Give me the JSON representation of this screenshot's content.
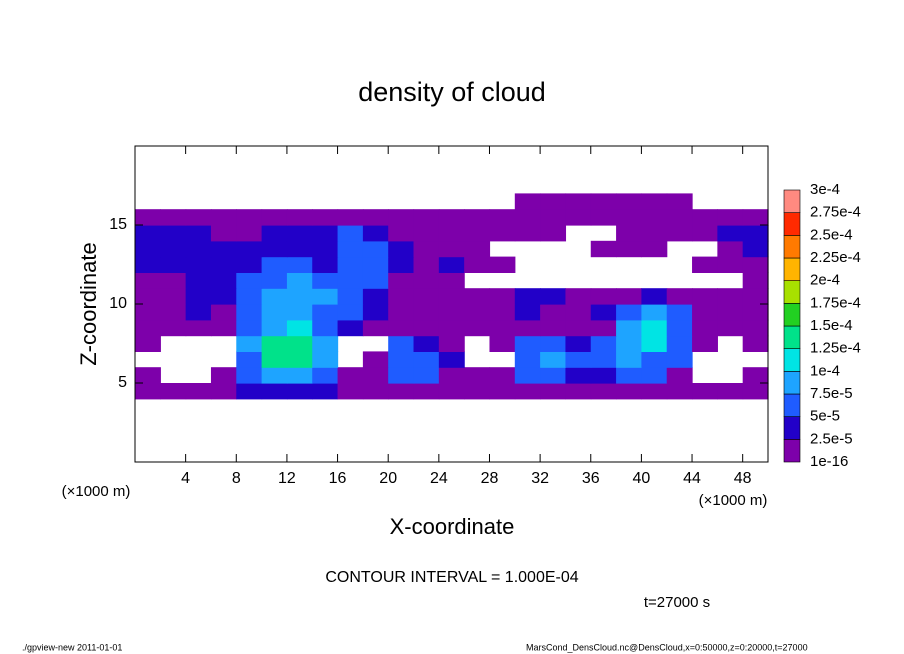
{
  "chart_data": {
    "type": "heatmap",
    "title": "density of cloud",
    "xlabel": "X-coordinate",
    "ylabel": "Z-coordinate",
    "x_unit_left": "(×1000 m)",
    "x_unit_right": "(×1000 m)",
    "contour_note": "CONTOUR INTERVAL = 1.000E-04",
    "time_label": "t=27000 s",
    "footer_left": "./gpview-new   2011-01-01",
    "footer_right": "MarsCond_DensCloud.nc@DensCloud,x=0:50000,z=0:20000,t=27000",
    "xlim": [
      0,
      50
    ],
    "ylim": [
      0,
      20
    ],
    "xticks": [
      4,
      8,
      12,
      16,
      20,
      24,
      28,
      32,
      36,
      40,
      44,
      48
    ],
    "yticks": [
      5,
      10,
      15
    ],
    "x_bins": [
      0,
      2,
      4,
      6,
      8,
      10,
      12,
      14,
      16,
      18,
      20,
      22,
      24,
      26,
      28,
      30,
      32,
      34,
      36,
      38,
      40,
      42,
      44,
      46,
      48,
      50
    ],
    "y_bins": [
      4,
      5,
      6,
      7,
      8,
      9,
      10,
      11,
      12,
      13,
      14,
      15,
      16,
      17
    ],
    "levels": [
      1e-16,
      {
        "value": 2.5e-05,
        "label": "2.5e-5"
      },
      {
        "value": 5e-05,
        "label": "5e-5"
      },
      {
        "value": 7.5e-05,
        "label": "7.5e-5"
      },
      {
        "value": 0.0001,
        "label": "1e-4"
      },
      {
        "value": 0.000125,
        "label": "1.25e-4"
      },
      {
        "value": 0.00015,
        "label": "1.5e-4"
      },
      {
        "value": 0.000175,
        "label": "1.75e-4"
      },
      {
        "value": 0.0002,
        "label": "2e-4"
      },
      {
        "value": 0.000225,
        "label": "2.25e-4"
      },
      {
        "value": 0.00025,
        "label": "2.5e-4"
      },
      {
        "value": 0.000275,
        "label": "2.75e-4"
      },
      {
        "value": 0.0003,
        "label": "3e-4"
      }
    ],
    "colors": [
      "#7d00aa",
      "#2200c8",
      "#1f5cff",
      "#1ea4ff",
      "#00e4e4",
      "#00e28a",
      "#22d022",
      "#a8e000",
      "#ffb400",
      "#ff7a00",
      "#ff2a00",
      "#ff8a80"
    ],
    "values": [
      [
        1e-05,
        1e-05,
        1e-05,
        1e-05,
        3e-05,
        3e-05,
        3e-05,
        3e-05,
        1e-05,
        1e-05,
        1e-05,
        1e-05,
        1e-05,
        1e-05,
        1e-05,
        1e-05,
        1e-05,
        1e-05,
        1e-05,
        1e-05,
        1e-05,
        1e-05,
        1e-05,
        1e-05,
        1e-05
      ],
      [
        1e-05,
        null,
        null,
        1e-05,
        6e-05,
        9e-05,
        9e-05,
        6e-05,
        1e-05,
        1e-05,
        6e-05,
        6e-05,
        1e-05,
        1e-05,
        1e-05,
        6e-05,
        6e-05,
        3e-05,
        3e-05,
        6e-05,
        6e-05,
        1e-05,
        null,
        null,
        1e-05
      ],
      [
        null,
        null,
        null,
        null,
        6e-05,
        0.00014,
        0.00014,
        9e-05,
        null,
        1e-05,
        6e-05,
        6e-05,
        3e-05,
        null,
        null,
        6e-05,
        9e-05,
        6e-05,
        6e-05,
        9e-05,
        6e-05,
        6e-05,
        null,
        null,
        null
      ],
      [
        1e-05,
        null,
        null,
        null,
        9e-05,
        0.00014,
        0.00014,
        9e-05,
        null,
        null,
        6e-05,
        3e-05,
        1e-05,
        null,
        1e-05,
        6e-05,
        6e-05,
        3e-05,
        6e-05,
        9e-05,
        0.00011,
        6e-05,
        1e-05,
        null,
        1e-05
      ],
      [
        1e-05,
        1e-05,
        1e-05,
        1e-05,
        6e-05,
        9e-05,
        0.00011,
        6e-05,
        3e-05,
        1e-05,
        1e-05,
        1e-05,
        1e-05,
        1e-05,
        1e-05,
        1e-05,
        1e-05,
        1e-05,
        1e-05,
        9e-05,
        0.00011,
        6e-05,
        1e-05,
        1e-05,
        1e-05
      ],
      [
        1e-05,
        1e-05,
        3e-05,
        1e-05,
        6e-05,
        9e-05,
        9e-05,
        6e-05,
        6e-05,
        3e-05,
        1e-05,
        1e-05,
        1e-05,
        1e-05,
        1e-05,
        3e-05,
        1e-05,
        1e-05,
        3e-05,
        6e-05,
        9e-05,
        6e-05,
        1e-05,
        1e-05,
        1e-05
      ],
      [
        1e-05,
        1e-05,
        3e-05,
        3e-05,
        6e-05,
        9e-05,
        9e-05,
        9e-05,
        6e-05,
        3e-05,
        1e-05,
        1e-05,
        1e-05,
        1e-05,
        1e-05,
        3e-05,
        3e-05,
        1e-05,
        1e-05,
        1e-05,
        3e-05,
        1e-05,
        1e-05,
        1e-05,
        1e-05
      ],
      [
        1e-05,
        1e-05,
        3e-05,
        3e-05,
        6e-05,
        6e-05,
        9e-05,
        6e-05,
        6e-05,
        6e-05,
        1e-05,
        1e-05,
        1e-05,
        null,
        null,
        null,
        null,
        null,
        null,
        null,
        null,
        null,
        null,
        null,
        1e-05
      ],
      [
        3e-05,
        3e-05,
        3e-05,
        3e-05,
        3e-05,
        6e-05,
        6e-05,
        3e-05,
        6e-05,
        6e-05,
        3e-05,
        1e-05,
        3e-05,
        1e-05,
        1e-05,
        null,
        null,
        null,
        null,
        null,
        null,
        null,
        1e-05,
        1e-05,
        1e-05
      ],
      [
        3e-05,
        3e-05,
        3e-05,
        3e-05,
        3e-05,
        3e-05,
        3e-05,
        3e-05,
        6e-05,
        6e-05,
        3e-05,
        1e-05,
        1e-05,
        1e-05,
        null,
        null,
        null,
        null,
        1e-05,
        1e-05,
        1e-05,
        null,
        null,
        1e-05,
        3e-05
      ],
      [
        3e-05,
        3e-05,
        3e-05,
        1e-05,
        1e-05,
        3e-05,
        3e-05,
        3e-05,
        6e-05,
        3e-05,
        1e-05,
        1e-05,
        1e-05,
        1e-05,
        1e-05,
        1e-05,
        1e-05,
        null,
        null,
        1e-05,
        1e-05,
        1e-05,
        1e-05,
        3e-05,
        3e-05
      ],
      [
        1e-05,
        1e-05,
        1e-05,
        1e-05,
        1e-05,
        1e-05,
        1e-05,
        1e-05,
        1e-05,
        1e-05,
        1e-05,
        1e-05,
        1e-05,
        1e-05,
        1e-05,
        1e-05,
        1e-05,
        1e-05,
        1e-05,
        1e-05,
        1e-05,
        1e-05,
        1e-05,
        1e-05,
        1e-05
      ],
      [
        null,
        null,
        null,
        null,
        null,
        null,
        null,
        null,
        null,
        null,
        null,
        null,
        null,
        null,
        null,
        1e-05,
        1e-05,
        1e-05,
        1e-05,
        1e-05,
        1e-05,
        1e-05,
        null,
        null,
        null
      ]
    ]
  }
}
